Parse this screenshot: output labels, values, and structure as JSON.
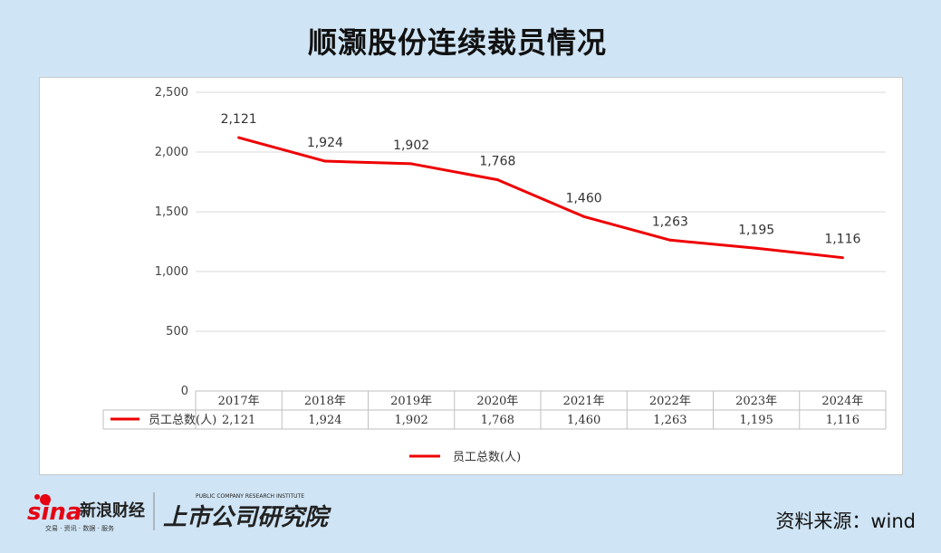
{
  "header": {
    "title": "顺灏股份连续裁员情况"
  },
  "chart_data": {
    "type": "line",
    "title": "顺灏股份连续裁员情况",
    "categories": [
      "2017年",
      "2018年",
      "2019年",
      "2020年",
      "2021年",
      "2022年",
      "2023年",
      "2024年"
    ],
    "series": [
      {
        "name": "员工总数(人)",
        "values": [
          2121,
          1924,
          1902,
          1768,
          1460,
          1263,
          1195,
          1116
        ],
        "color": "#ee0000"
      }
    ],
    "y_ticks": [
      0,
      500,
      1000,
      1500,
      2000,
      2500
    ],
    "ylim": [
      0,
      2500
    ],
    "grid": true,
    "legend": "bottom",
    "data_table": true
  },
  "footer": {
    "logo_sina": "sina",
    "logo_sina_cn": "新浪财经",
    "logo_sina_sub": "交易 · 资讯 · 数据 · 服务",
    "logo_institute": "上市公司研究院",
    "logo_institute_en": "PUBLIC COMPANY RESEARCH INSTITUTE",
    "source": "资料来源：wind"
  }
}
